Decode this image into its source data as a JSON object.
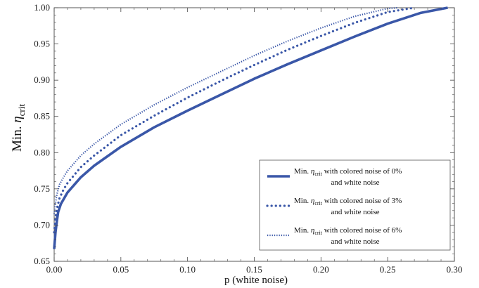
{
  "chart_data": {
    "type": "line",
    "xlabel": "p (white noise)",
    "ylabel_prefix": "Min. ",
    "ylabel_symbol": "η",
    "ylabel_subscript": "crit",
    "xlim": [
      0,
      0.3
    ],
    "ylim": [
      0.65,
      1.0
    ],
    "xticks": [
      0.0,
      0.05,
      0.1,
      0.15,
      0.2,
      0.25,
      0.3
    ],
    "xtick_labels": [
      "0.00",
      "0.05",
      "0.10",
      "0.15",
      "0.20",
      "0.25",
      "0.30"
    ],
    "yticks": [
      0.65,
      0.7,
      0.75,
      0.8,
      0.85,
      0.9,
      0.95,
      1.0
    ],
    "ytick_labels": [
      "0.65",
      "0.70",
      "0.75",
      "0.80",
      "0.85",
      "0.90",
      "0.95",
      "1.00"
    ],
    "grid": false,
    "legend_position": "bottom-right",
    "line_color": "#3a57a8",
    "series": [
      {
        "legend_line1_prefix": "Min. ",
        "legend_symbol": "η",
        "legend_sub": "crit",
        "legend_line1_suffix": " with  colored noise of 0%",
        "legend_line2": "and white noise",
        "style": "solid",
        "x": [
          0.0,
          0.001,
          0.002,
          0.003,
          0.005,
          0.01,
          0.02,
          0.03,
          0.05,
          0.075,
          0.1,
          0.125,
          0.15,
          0.175,
          0.2,
          0.225,
          0.25,
          0.275,
          0.295
        ],
        "y": [
          0.667,
          0.69,
          0.705,
          0.718,
          0.729,
          0.745,
          0.766,
          0.782,
          0.808,
          0.835,
          0.858,
          0.88,
          0.902,
          0.922,
          0.941,
          0.96,
          0.978,
          0.993,
          1.0
        ]
      },
      {
        "legend_line1_prefix": "Min. ",
        "legend_symbol": "η",
        "legend_sub": "crit",
        "legend_line1_suffix": " with  colored noise of 3%",
        "legend_line2": "and white noise",
        "style": "dotted",
        "x": [
          0.0,
          0.001,
          0.002,
          0.004,
          0.007,
          0.01,
          0.02,
          0.03,
          0.05,
          0.075,
          0.1,
          0.125,
          0.15,
          0.175,
          0.2,
          0.225,
          0.25,
          0.27
        ],
        "y": [
          0.69,
          0.71,
          0.722,
          0.737,
          0.749,
          0.758,
          0.78,
          0.796,
          0.824,
          0.851,
          0.876,
          0.899,
          0.921,
          0.942,
          0.961,
          0.979,
          0.994,
          1.0
        ]
      },
      {
        "legend_line1_prefix": "Min. ",
        "legend_symbol": "η",
        "legend_sub": "crit",
        "legend_line1_suffix": " with  colored noise of 6%",
        "legend_line2": "and white noise",
        "style": "fine-dotted",
        "x": [
          0.0,
          0.001,
          0.002,
          0.004,
          0.007,
          0.01,
          0.02,
          0.03,
          0.05,
          0.075,
          0.1,
          0.125,
          0.15,
          0.175,
          0.2,
          0.225,
          0.25,
          0.258
        ],
        "y": [
          0.715,
          0.73,
          0.742,
          0.756,
          0.766,
          0.775,
          0.796,
          0.812,
          0.839,
          0.866,
          0.89,
          0.912,
          0.934,
          0.954,
          0.972,
          0.988,
          0.999,
          1.0
        ]
      }
    ]
  }
}
